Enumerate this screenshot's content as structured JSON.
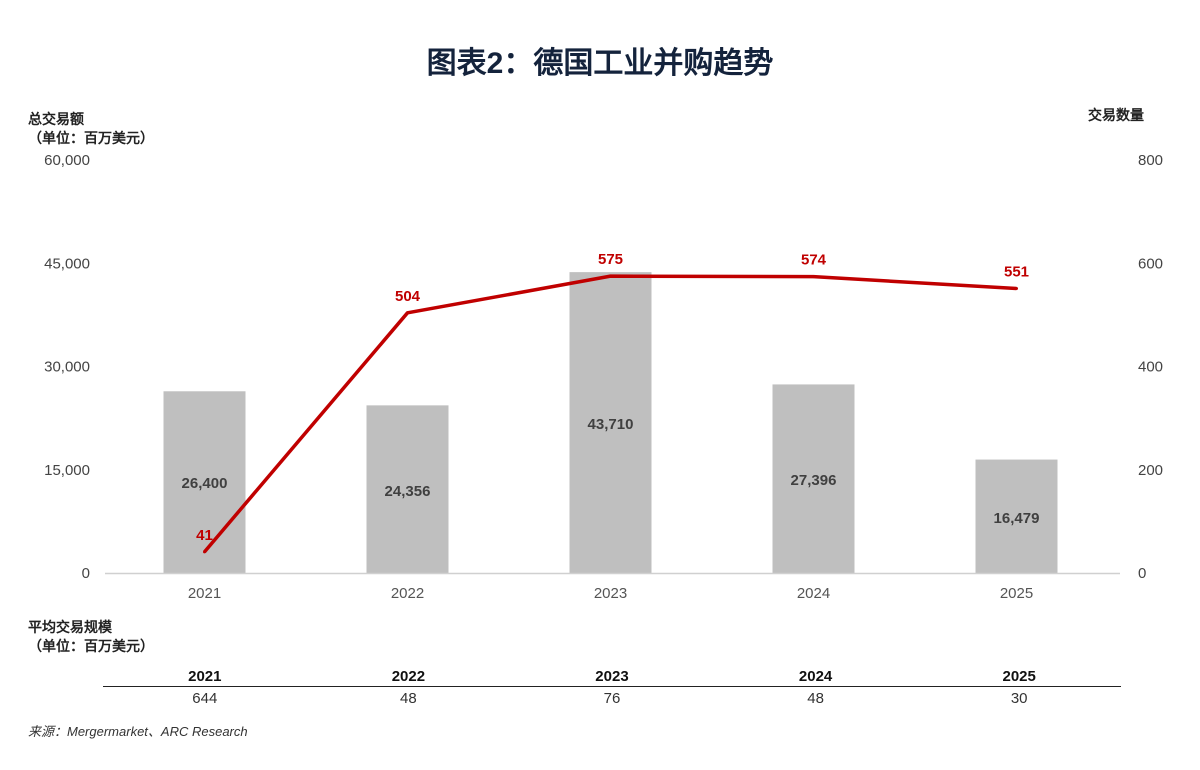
{
  "title": "图表2：德国工业并购趋势",
  "left_axis_title": [
    "总交易额",
    "（单位：百万美元）"
  ],
  "right_axis_title": "交易数量",
  "table_title": [
    "平均交易规模",
    "（单位：百万美元）"
  ],
  "table": {
    "headers": [
      "2021",
      "2022",
      "2023",
      "2024",
      "2025"
    ],
    "values": [
      "644",
      "48",
      "76",
      "48",
      "30"
    ]
  },
  "source": "来源：Mergermarket、ARC Research",
  "colors": {
    "bar": "#bfbfbf",
    "line": "#c00000",
    "title": "#14233c"
  },
  "chart_data": {
    "type": "bar+line",
    "categories": [
      "2021",
      "2022",
      "2023",
      "2024",
      "2025"
    ],
    "series": [
      {
        "name": "总交易额",
        "type": "bar",
        "axis": "left",
        "values": [
          26400,
          24356,
          43710,
          27396,
          16479
        ],
        "labels": [
          "26,400",
          "24,356",
          "43,710",
          "27,396",
          "16,479"
        ]
      },
      {
        "name": "交易数量",
        "type": "line",
        "axis": "right",
        "values": [
          41,
          504,
          575,
          574,
          551
        ],
        "labels": [
          "41",
          "504",
          "575",
          "574",
          "551"
        ]
      }
    ],
    "left_axis": {
      "range": [
        0,
        60000
      ],
      "ticks": [
        "0",
        "15,000",
        "30,000",
        "45,000",
        "60,000"
      ],
      "values": [
        0,
        15000,
        30000,
        45000,
        60000
      ]
    },
    "right_axis": {
      "range": [
        0,
        800
      ],
      "ticks": [
        "0",
        "200",
        "400",
        "600",
        "800"
      ],
      "values": [
        0,
        200,
        400,
        600,
        800
      ]
    },
    "grid": false
  }
}
